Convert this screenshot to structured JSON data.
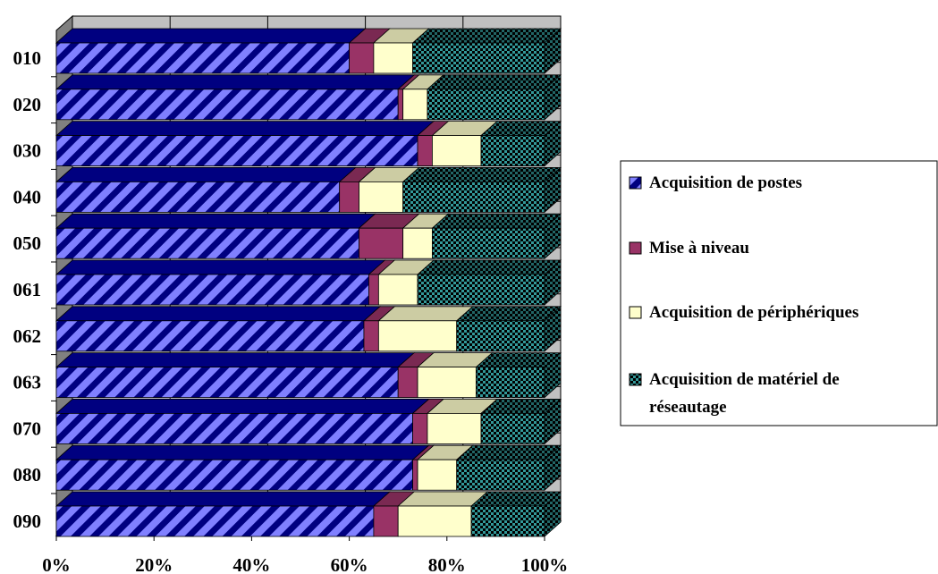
{
  "chart_data": {
    "type": "bar",
    "orientation": "horizontal",
    "stacked": "100%",
    "three_d": true,
    "grid": true,
    "legend_position": "right",
    "categories": [
      "010",
      "020",
      "030",
      "040",
      "050",
      "061",
      "062",
      "063",
      "070",
      "080",
      "090"
    ],
    "x_ticks": [
      "0%",
      "20%",
      "40%",
      "60%",
      "80%",
      "100%"
    ],
    "xlim": [
      0,
      100
    ],
    "series": [
      {
        "name": "Acquisition de postes",
        "color": "#8080ff",
        "pattern": "diagonal-stripes",
        "values": [
          60,
          70,
          74,
          58,
          62,
          64,
          63,
          70,
          73,
          73,
          65
        ]
      },
      {
        "name": "Mise à niveau",
        "color": "#993366",
        "pattern": "solid",
        "values": [
          5,
          1,
          3,
          4,
          9,
          2,
          3,
          4,
          3,
          1,
          5
        ]
      },
      {
        "name": "Acquisition de périphériques",
        "color": "#ffffcc",
        "pattern": "solid",
        "values": [
          8,
          5,
          10,
          9,
          6,
          8,
          16,
          12,
          11,
          8,
          15
        ]
      },
      {
        "name": "Acquisition de matériel de réseautage",
        "color": "#339999",
        "pattern": "checker",
        "values": [
          27,
          24,
          13,
          29,
          23,
          26,
          18,
          14,
          13,
          18,
          15
        ]
      }
    ],
    "legend_lines": [
      [
        "Acquisition de postes"
      ],
      [
        "Mise à niveau"
      ],
      [
        "Acquisition de périphériques"
      ],
      [
        "Acquisition de matériel de",
        "réseautage"
      ]
    ],
    "colors": {
      "wall": "#c0c0c0",
      "floor": "#808080",
      "side_wall": "#808080",
      "grid": "#000000"
    }
  }
}
